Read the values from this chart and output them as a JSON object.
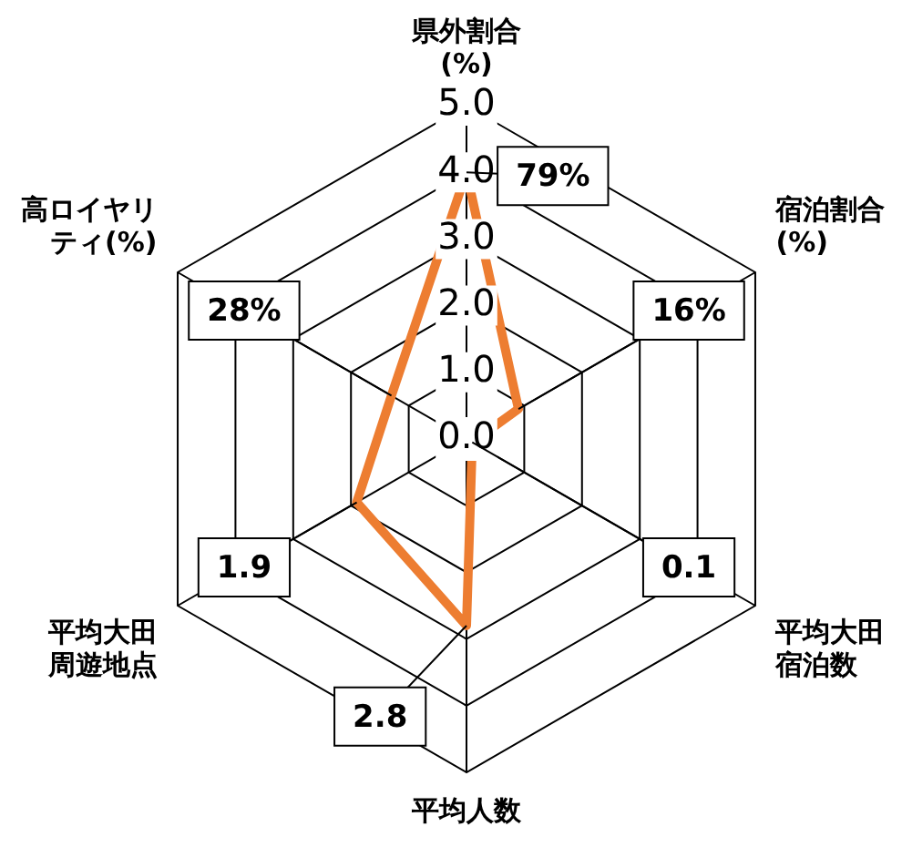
{
  "chart_data": {
    "type": "radar",
    "categories": [
      "県外割合(%)",
      "宿泊割合(%)",
      "平均大田宿泊数",
      "平均人数",
      "平均大田周遊地点",
      "高ロイヤリティ(%)"
    ],
    "series": [
      {
        "color": "#ed7d31",
        "values": [
          4.0,
          0.9,
          0.1,
          2.8,
          1.9,
          1.3
        ]
      }
    ],
    "annotations": [
      {
        "text": "79%",
        "x": "県外割合(%)"
      },
      {
        "text": "16%",
        "x": "宿泊割合(%)"
      },
      {
        "text": "0.1",
        "x": "平均大田宿泊数"
      },
      {
        "text": "2.8",
        "x": "平均人数"
      },
      {
        "text": "1.9",
        "x": "平均大田周遊地点"
      },
      {
        "text": "28%",
        "x": "高ロイヤリティ(%)"
      }
    ],
    "ylim": [
      0,
      5
    ],
    "yticks": [
      {
        "value": 0,
        "label": "0.0"
      },
      {
        "value": 1,
        "label": "1.0"
      },
      {
        "value": 2,
        "label": "2.0"
      },
      {
        "value": 3,
        "label": "3.0"
      },
      {
        "value": 4,
        "label": "4.0"
      },
      {
        "value": 5,
        "label": "5.0"
      }
    ],
    "grid": true,
    "legend": false,
    "marker": "none",
    "line_style": "solid"
  }
}
